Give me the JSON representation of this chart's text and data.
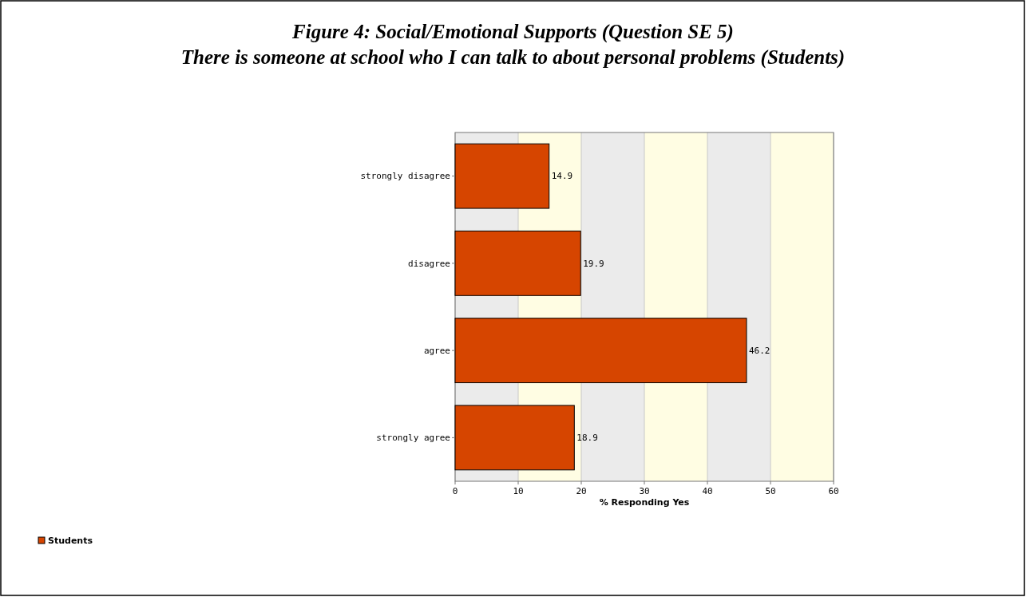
{
  "chart_data": {
    "type": "bar",
    "orientation": "horizontal",
    "title": "Figure 4: Social/Emotional Supports (Question SE 5)",
    "subtitle": "There is someone at school who I can talk to about personal problems (Students)",
    "categories": [
      "strongly disagree",
      "disagree",
      "agree",
      "strongly agree"
    ],
    "series": [
      {
        "name": "Students",
        "color": "#d64500",
        "values": [
          14.9,
          19.9,
          46.2,
          18.9
        ]
      }
    ],
    "xlabel": "% Responding Yes",
    "xlim": [
      0,
      60
    ],
    "xticks": [
      0,
      10,
      20,
      30,
      40,
      50,
      60
    ],
    "data_labels": true,
    "grid": "x",
    "legend": "bottom left"
  }
}
